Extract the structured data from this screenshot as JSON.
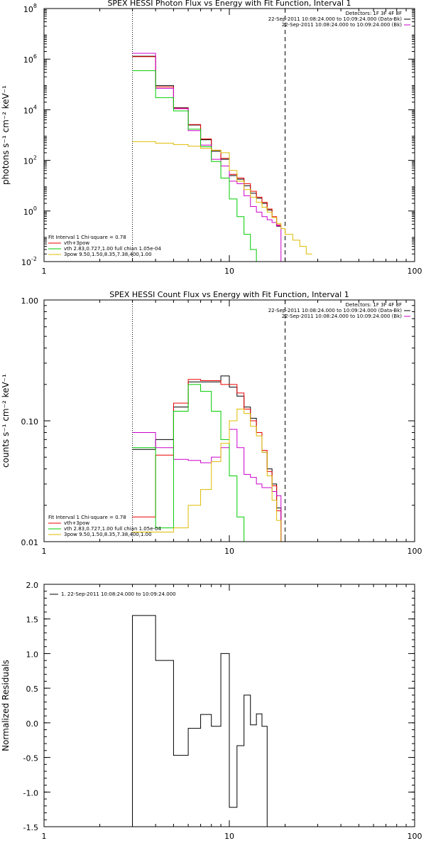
{
  "chart_data": [
    {
      "type": "line",
      "title": "SPEX HESSI Photon Flux vs Energy with Fit Function, Interval 1",
      "xlabel": "",
      "ylabel": "photons s⁻¹ cm⁻² keV⁻¹",
      "xscale": "log",
      "yscale": "log",
      "xlim": [
        1,
        100
      ],
      "ylim": [
        0.01,
        100000000
      ],
      "x_ticks": [
        {
          "v": 1,
          "label": "1"
        },
        {
          "v": 10,
          "label": "10"
        },
        {
          "v": 100,
          "label": "100"
        }
      ],
      "y_ticks": [
        {
          "v": 0.01,
          "base": "10",
          "exp": "-2"
        },
        {
          "v": 1,
          "base": "10",
          "exp": "0"
        },
        {
          "v": 100,
          "base": "10",
          "exp": "2"
        },
        {
          "v": 10000,
          "base": "10",
          "exp": "4"
        },
        {
          "v": 1000000,
          "base": "10",
          "exp": "6"
        },
        {
          "v": 100000000,
          "base": "10",
          "exp": "8"
        }
      ],
      "vlines": [
        {
          "x": 3,
          "style": "dotted"
        },
        {
          "x": 20,
          "style": "dashed"
        }
      ],
      "legend_topright": {
        "lines": [
          "Detectors: 1F 3F 4F 8F",
          "22-Sep-2011 10:08:24.000 to 10:09:24.000 (Data-Bk)",
          "22-Sep-2011 10:08:24.000 to 10:09:24.000 (Bk)"
        ],
        "colors": [
          "#000000",
          "#000000",
          "#cc00cc"
        ]
      },
      "legend_bottomleft": {
        "lines": [
          "Fit Interval 1   Chi-square = 0.78",
          "vth+3pow",
          "vth 2.83,0.727,1.00  full chian 1.05e-04",
          "3pow 9.50,1.50,8.35,7.38,400,1.00"
        ],
        "colors": [
          "#000000",
          "#ee0000",
          "#00cc00",
          "#ddbb00"
        ]
      },
      "edges": [
        3,
        4,
        5,
        6,
        7,
        8,
        9,
        10,
        11,
        12,
        13,
        14,
        15,
        16,
        17,
        18,
        19,
        20,
        22,
        24,
        26,
        28,
        30,
        32
      ],
      "series": [
        {
          "color": "#000000",
          "values": [
            1300000,
            90000,
            12000,
            2500,
            650,
            230,
            110,
            25,
            18,
            10,
            5,
            3.2,
            2,
            1.1,
            0.55,
            0.25
          ]
        },
        {
          "color": "#ee0000",
          "values": [
            1250000,
            80000,
            11500,
            2600,
            700,
            250,
            120,
            28,
            20,
            12,
            6,
            3.5,
            2.2,
            1.2,
            0.6,
            0.28
          ]
        },
        {
          "color": "#cc00cc",
          "values": [
            1700000,
            70000,
            11000,
            1500,
            400,
            110,
            60,
            15,
            12,
            4,
            1.5,
            0.9,
            0.6,
            0.45,
            0.35,
            0.26,
            0.01
          ]
        },
        {
          "color": "#00cc00",
          "values": [
            350000,
            30000,
            9000,
            1700,
            350,
            90,
            20,
            3,
            0.6,
            0.12,
            0.03,
            0.01
          ]
        },
        {
          "color": "#ddbb00",
          "values": [
            550,
            480,
            420,
            360,
            300,
            250,
            200,
            40,
            15,
            7,
            3.5,
            2.2,
            1.4,
            0.9,
            0.55,
            0.32,
            0.2,
            0.12,
            0.07,
            0.04,
            0.02
          ]
        }
      ]
    },
    {
      "type": "line",
      "title": "SPEX HESSI Count Flux vs Energy with Fit Function, Interval 1",
      "xlabel": "",
      "ylabel": "counts s⁻¹ cm⁻² keV⁻¹",
      "xscale": "log",
      "yscale": "log",
      "xlim": [
        1,
        100
      ],
      "ylim": [
        0.01,
        1.0
      ],
      "x_ticks": [
        {
          "v": 1,
          "label": "1"
        },
        {
          "v": 10,
          "label": "10"
        },
        {
          "v": 100,
          "label": "100"
        }
      ],
      "y_ticks": [
        {
          "v": 0.01,
          "label": "0.01"
        },
        {
          "v": 0.1,
          "label": "0.10"
        },
        {
          "v": 1.0,
          "label": "1.00"
        }
      ],
      "vlines": [
        {
          "x": 3,
          "style": "dotted"
        },
        {
          "x": 20,
          "style": "dashed"
        }
      ],
      "legend_topright": {
        "lines": [
          "Detectors: 1F 3F 4F 8F",
          "22-Sep-2011 10:08:24.000 to 10:09:24.000 (Data-Bk)",
          "22-Sep-2011 10:08:24.000 to 10:09:24.000 (Bk)"
        ],
        "colors": [
          "#000000",
          "#000000",
          "#cc00cc"
        ]
      },
      "legend_bottomleft": {
        "lines": [
          "Fit Interval 1   Chi-square = 0.78",
          "vth+3pow",
          "vth 2.83,0.727,1.00  full chian 1.05e-04",
          "3pow 9.50,1.50,8.35,7.38,400,1.00"
        ],
        "colors": [
          "#000000",
          "#ee0000",
          "#00cc00",
          "#ddbb00"
        ]
      },
      "edges": [
        3,
        4,
        5,
        6,
        7,
        8,
        9,
        10,
        11,
        12,
        13,
        14,
        15,
        16,
        17,
        18,
        19,
        20,
        22
      ],
      "series": [
        {
          "color": "#000000",
          "values": [
            0.058,
            0.07,
            0.13,
            0.21,
            0.21,
            0.21,
            0.235,
            0.19,
            0.16,
            0.13,
            0.105,
            0.08,
            0.055,
            0.04,
            0.03,
            0.019,
            0.01
          ]
        },
        {
          "color": "#ee0000",
          "values": [
            0.016,
            0.052,
            0.14,
            0.22,
            0.215,
            0.215,
            0.2,
            0.2,
            0.17,
            0.125,
            0.1,
            0.08,
            0.057,
            0.038,
            0.029,
            0.018,
            0.01
          ]
        },
        {
          "color": "#cc00cc",
          "values": [
            0.08,
            0.06,
            0.048,
            0.047,
            0.045,
            0.05,
            0.06,
            0.085,
            0.06,
            0.036,
            0.034,
            0.03,
            0.028,
            0.028,
            0.026,
            0.024,
            0.01
          ]
        },
        {
          "color": "#00cc00",
          "values": [
            0.06,
            0.013,
            0.12,
            0.2,
            0.175,
            0.12,
            0.07,
            0.035,
            0.016,
            0.01,
            0.01
          ]
        },
        {
          "color": "#ddbb00",
          "values": [
            0.012,
            0.012,
            0.013,
            0.02,
            0.027,
            0.046,
            0.065,
            0.1,
            0.125,
            0.115,
            0.09,
            0.075,
            0.055,
            0.035,
            0.022,
            0.015,
            0.01
          ]
        }
      ]
    },
    {
      "type": "line",
      "title": "",
      "xlabel": "",
      "ylabel": "Normalized Residuals",
      "xscale": "log",
      "yscale": "linear",
      "xlim": [
        1,
        100
      ],
      "ylim": [
        -1.5,
        2.0
      ],
      "x_ticks": [
        {
          "v": 1,
          "label": "1"
        },
        {
          "v": 10,
          "label": "10"
        },
        {
          "v": 100,
          "label": "100"
        }
      ],
      "y_ticks": [
        {
          "v": -1.5,
          "label": "-1.5"
        },
        {
          "v": -1.0,
          "label": "-1.0"
        },
        {
          "v": -0.5,
          "label": "-0.5"
        },
        {
          "v": 0.0,
          "label": "0.0"
        },
        {
          "v": 0.5,
          "label": "0.5"
        },
        {
          "v": 1.0,
          "label": "1.0"
        },
        {
          "v": 1.5,
          "label": "1.5"
        },
        {
          "v": 2.0,
          "label": "2.0"
        }
      ],
      "vlines": [],
      "legend_topleft": {
        "lines": [
          "1. 22-Sep-2011 10:08:24.000 to 10:09:24.000"
        ],
        "colors": [
          "#000000"
        ]
      },
      "legend_bottomleft": {
        "lines": [],
        "colors": []
      },
      "legend_topright": {
        "lines": [],
        "colors": []
      },
      "edges": [
        3,
        4,
        5,
        6,
        7,
        8,
        9,
        10,
        11,
        12,
        13,
        14,
        15,
        16,
        17,
        18,
        19,
        20
      ],
      "series": [
        {
          "color": "#000000",
          "values": [
            1.55,
            0.9,
            -0.47,
            -0.08,
            0.12,
            -0.05,
            1.0,
            -1.22,
            -0.33,
            0.4,
            -0.03,
            0.13,
            -0.05
          ]
        }
      ]
    }
  ]
}
